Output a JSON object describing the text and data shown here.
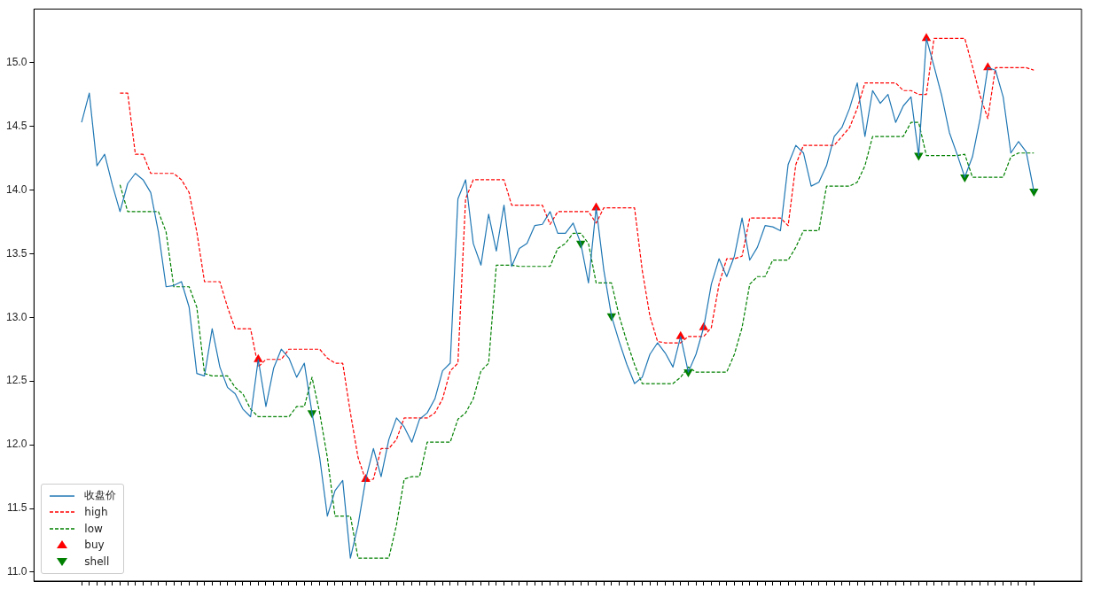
{
  "chart_data": {
    "type": "line",
    "categories": [
      null,
      null,
      null,
      null,
      null,
      null,
      null,
      null,
      null,
      null,
      null,
      null,
      null,
      null,
      null,
      null,
      null,
      null,
      null,
      null,
      null,
      null,
      null,
      null,
      null,
      null,
      null,
      null,
      null,
      null,
      null,
      null,
      null,
      null,
      null,
      null,
      null,
      null,
      null,
      null,
      null,
      null,
      null,
      null,
      null,
      null,
      null,
      null,
      null,
      null,
      null,
      null,
      null,
      null,
      null,
      null,
      null,
      null,
      null,
      null,
      null,
      null,
      null,
      null,
      null,
      null,
      null,
      null,
      null,
      null,
      null,
      null,
      null,
      null,
      null,
      null,
      null,
      null,
      null,
      null,
      null,
      null,
      null,
      null,
      null,
      null,
      null,
      null,
      null,
      null,
      null,
      null,
      null,
      null,
      null,
      null,
      null,
      null,
      null,
      null,
      null,
      null,
      null,
      null,
      null,
      null,
      null,
      null,
      null,
      null,
      null,
      null,
      null,
      null,
      null,
      null,
      null,
      null,
      null,
      null,
      null,
      null,
      null,
      null,
      null
    ],
    "ylim": [
      10.93,
      15.42
    ],
    "yticks": [
      {
        "value": 11,
        "label": "11.0"
      },
      {
        "value": 11.5,
        "label": "11.5"
      },
      {
        "value": 12,
        "label": "12.0"
      },
      {
        "value": 12.5,
        "label": "12.5"
      },
      {
        "value": 13,
        "label": "13.0"
      },
      {
        "value": 13.5,
        "label": "13.5"
      },
      {
        "value": 14,
        "label": "14.0"
      },
      {
        "value": 14.5,
        "label": "14.5"
      },
      {
        "value": 15,
        "label": "15.0"
      }
    ],
    "tick_labels": "y",
    "grid": false,
    "legend": "bottom left",
    "series": [
      {
        "name": "收盘价",
        "type": "line",
        "color": "#1f77b4",
        "line_style": "solid",
        "marker": "none",
        "values": [
          14.53,
          14.76,
          14.19,
          14.28,
          14.04,
          13.83,
          14.05,
          14.13,
          14.08,
          13.98,
          13.67,
          13.24,
          13.25,
          13.28,
          13.08,
          12.56,
          12.54,
          12.91,
          12.61,
          12.45,
          12.4,
          12.28,
          12.22,
          12.67,
          12.3,
          12.6,
          12.75,
          12.68,
          12.53,
          12.64,
          12.25,
          11.9,
          11.44,
          11.64,
          11.72,
          11.11,
          11.37,
          11.73,
          11.97,
          11.75,
          12.04,
          12.21,
          12.14,
          12.02,
          12.2,
          12.25,
          12.36,
          12.58,
          12.64,
          13.93,
          14.08,
          13.58,
          13.41,
          13.81,
          13.52,
          13.88,
          13.4,
          13.54,
          13.58,
          13.72,
          13.73,
          13.83,
          13.66,
          13.66,
          13.74,
          13.58,
          13.27,
          13.86,
          13.37,
          13.01,
          12.81,
          12.63,
          12.48,
          12.53,
          12.71,
          12.8,
          12.72,
          12.61,
          12.85,
          12.57,
          12.71,
          12.92,
          13.26,
          13.46,
          13.32,
          13.48,
          13.78,
          13.45,
          13.55,
          13.72,
          13.71,
          13.68,
          14.2,
          14.35,
          14.29,
          14.03,
          14.06,
          14.19,
          14.42,
          14.49,
          14.64,
          14.84,
          14.42,
          14.78,
          14.68,
          14.75,
          14.53,
          14.66,
          14.73,
          14.27,
          15.19,
          14.97,
          14.74,
          14.45,
          14.28,
          14.1,
          14.26,
          14.56,
          14.96,
          14.94,
          14.73,
          14.29,
          14.38,
          14.3,
          13.99
        ]
      },
      {
        "name": "high",
        "type": "line",
        "color": "#ff0000",
        "line_style": "dashed",
        "marker": "none",
        "values": [
          null,
          null,
          null,
          null,
          null,
          14.76,
          14.76,
          14.28,
          14.28,
          14.13,
          14.13,
          14.13,
          14.13,
          14.08,
          13.98,
          13.67,
          13.28,
          13.28,
          13.28,
          13.08,
          12.91,
          12.91,
          12.91,
          12.61,
          12.67,
          12.67,
          12.67,
          12.75,
          12.75,
          12.75,
          12.75,
          12.75,
          12.68,
          12.64,
          12.64,
          12.25,
          11.9,
          11.72,
          11.73,
          11.97,
          11.97,
          12.04,
          12.21,
          12.21,
          12.21,
          12.21,
          12.25,
          12.36,
          12.58,
          12.64,
          13.93,
          14.08,
          14.08,
          14.08,
          14.08,
          14.08,
          13.88,
          13.88,
          13.88,
          13.88,
          13.88,
          13.73,
          13.83,
          13.83,
          13.83,
          13.83,
          13.83,
          13.74,
          13.86,
          13.86,
          13.86,
          13.86,
          13.86,
          13.37,
          13.01,
          12.81,
          12.8,
          12.8,
          12.8,
          12.85,
          12.85,
          12.85,
          12.92,
          13.26,
          13.46,
          13.46,
          13.48,
          13.78,
          13.78,
          13.78,
          13.78,
          13.78,
          13.72,
          14.2,
          14.35,
          14.35,
          14.35,
          14.35,
          14.35,
          14.42,
          14.49,
          14.64,
          14.84,
          14.84,
          14.84,
          14.84,
          14.84,
          14.78,
          14.78,
          14.75,
          14.75,
          15.19,
          15.19,
          15.19,
          15.19,
          15.19,
          14.97,
          14.74,
          14.56,
          14.96,
          14.96,
          14.96,
          14.96,
          14.96,
          14.94
        ]
      },
      {
        "name": "low",
        "type": "line",
        "color": "#008000",
        "line_style": "dashed",
        "marker": "none",
        "values": [
          null,
          null,
          null,
          null,
          null,
          14.04,
          13.83,
          13.83,
          13.83,
          13.83,
          13.83,
          13.67,
          13.24,
          13.24,
          13.24,
          13.08,
          12.56,
          12.54,
          12.54,
          12.54,
          12.45,
          12.4,
          12.28,
          12.22,
          12.22,
          12.22,
          12.22,
          12.22,
          12.3,
          12.3,
          12.53,
          12.25,
          11.9,
          11.44,
          11.44,
          11.44,
          11.11,
          11.11,
          11.11,
          11.11,
          11.11,
          11.37,
          11.73,
          11.75,
          11.75,
          12.02,
          12.02,
          12.02,
          12.02,
          12.2,
          12.25,
          12.36,
          12.58,
          12.64,
          13.41,
          13.41,
          13.41,
          13.4,
          13.4,
          13.4,
          13.4,
          13.4,
          13.54,
          13.58,
          13.66,
          13.66,
          13.58,
          13.27,
          13.27,
          13.27,
          13.01,
          12.81,
          12.63,
          12.48,
          12.48,
          12.48,
          12.48,
          12.48,
          12.53,
          12.61,
          12.57,
          12.57,
          12.57,
          12.57,
          12.57,
          12.71,
          12.92,
          13.26,
          13.32,
          13.32,
          13.45,
          13.45,
          13.45,
          13.55,
          13.68,
          13.68,
          13.68,
          14.03,
          14.03,
          14.03,
          14.03,
          14.06,
          14.19,
          14.42,
          14.42,
          14.42,
          14.42,
          14.42,
          14.53,
          14.53,
          14.27,
          14.27,
          14.27,
          14.27,
          14.27,
          14.28,
          14.1,
          14.1,
          14.1,
          14.1,
          14.1,
          14.26,
          14.29,
          14.29,
          14.29
        ]
      },
      {
        "name": "buy",
        "type": "scatter",
        "color": "#ff0000",
        "marker": "triangle",
        "values": [
          null,
          null,
          null,
          null,
          null,
          null,
          null,
          null,
          null,
          null,
          null,
          null,
          null,
          null,
          null,
          null,
          null,
          null,
          null,
          null,
          null,
          null,
          null,
          12.67,
          null,
          null,
          null,
          null,
          null,
          null,
          null,
          null,
          null,
          null,
          null,
          null,
          null,
          11.73,
          null,
          null,
          null,
          null,
          null,
          null,
          null,
          null,
          null,
          null,
          null,
          null,
          null,
          null,
          null,
          null,
          null,
          null,
          null,
          null,
          null,
          null,
          null,
          null,
          null,
          null,
          null,
          null,
          null,
          13.86,
          null,
          null,
          null,
          null,
          null,
          null,
          null,
          null,
          null,
          null,
          12.85,
          null,
          null,
          12.92,
          null,
          null,
          null,
          null,
          null,
          null,
          null,
          null,
          null,
          null,
          null,
          null,
          null,
          null,
          null,
          null,
          null,
          null,
          null,
          null,
          null,
          null,
          null,
          null,
          null,
          null,
          null,
          null,
          15.19,
          null,
          null,
          null,
          null,
          null,
          null,
          null,
          14.96,
          null,
          null,
          null,
          null,
          null,
          null
        ]
      },
      {
        "name": "shell",
        "type": "scatter",
        "color": "#008000",
        "marker": "triangle_down",
        "values": [
          null,
          null,
          null,
          null,
          null,
          null,
          null,
          null,
          null,
          null,
          null,
          null,
          null,
          null,
          null,
          null,
          null,
          null,
          null,
          null,
          null,
          null,
          null,
          null,
          null,
          null,
          null,
          null,
          null,
          null,
          12.25,
          null,
          null,
          null,
          null,
          null,
          null,
          null,
          null,
          null,
          null,
          null,
          null,
          null,
          null,
          null,
          null,
          null,
          null,
          null,
          null,
          null,
          null,
          null,
          null,
          null,
          null,
          null,
          null,
          null,
          null,
          null,
          null,
          null,
          null,
          13.58,
          null,
          null,
          null,
          13.01,
          null,
          null,
          null,
          null,
          null,
          null,
          null,
          null,
          null,
          12.57,
          null,
          null,
          null,
          null,
          null,
          null,
          null,
          null,
          null,
          null,
          null,
          null,
          null,
          null,
          null,
          null,
          null,
          null,
          null,
          null,
          null,
          null,
          null,
          null,
          null,
          null,
          null,
          null,
          null,
          14.27,
          null,
          null,
          null,
          null,
          null,
          14.1,
          null,
          null,
          null,
          null,
          null,
          null,
          null,
          null,
          13.99
        ]
      }
    ]
  }
}
